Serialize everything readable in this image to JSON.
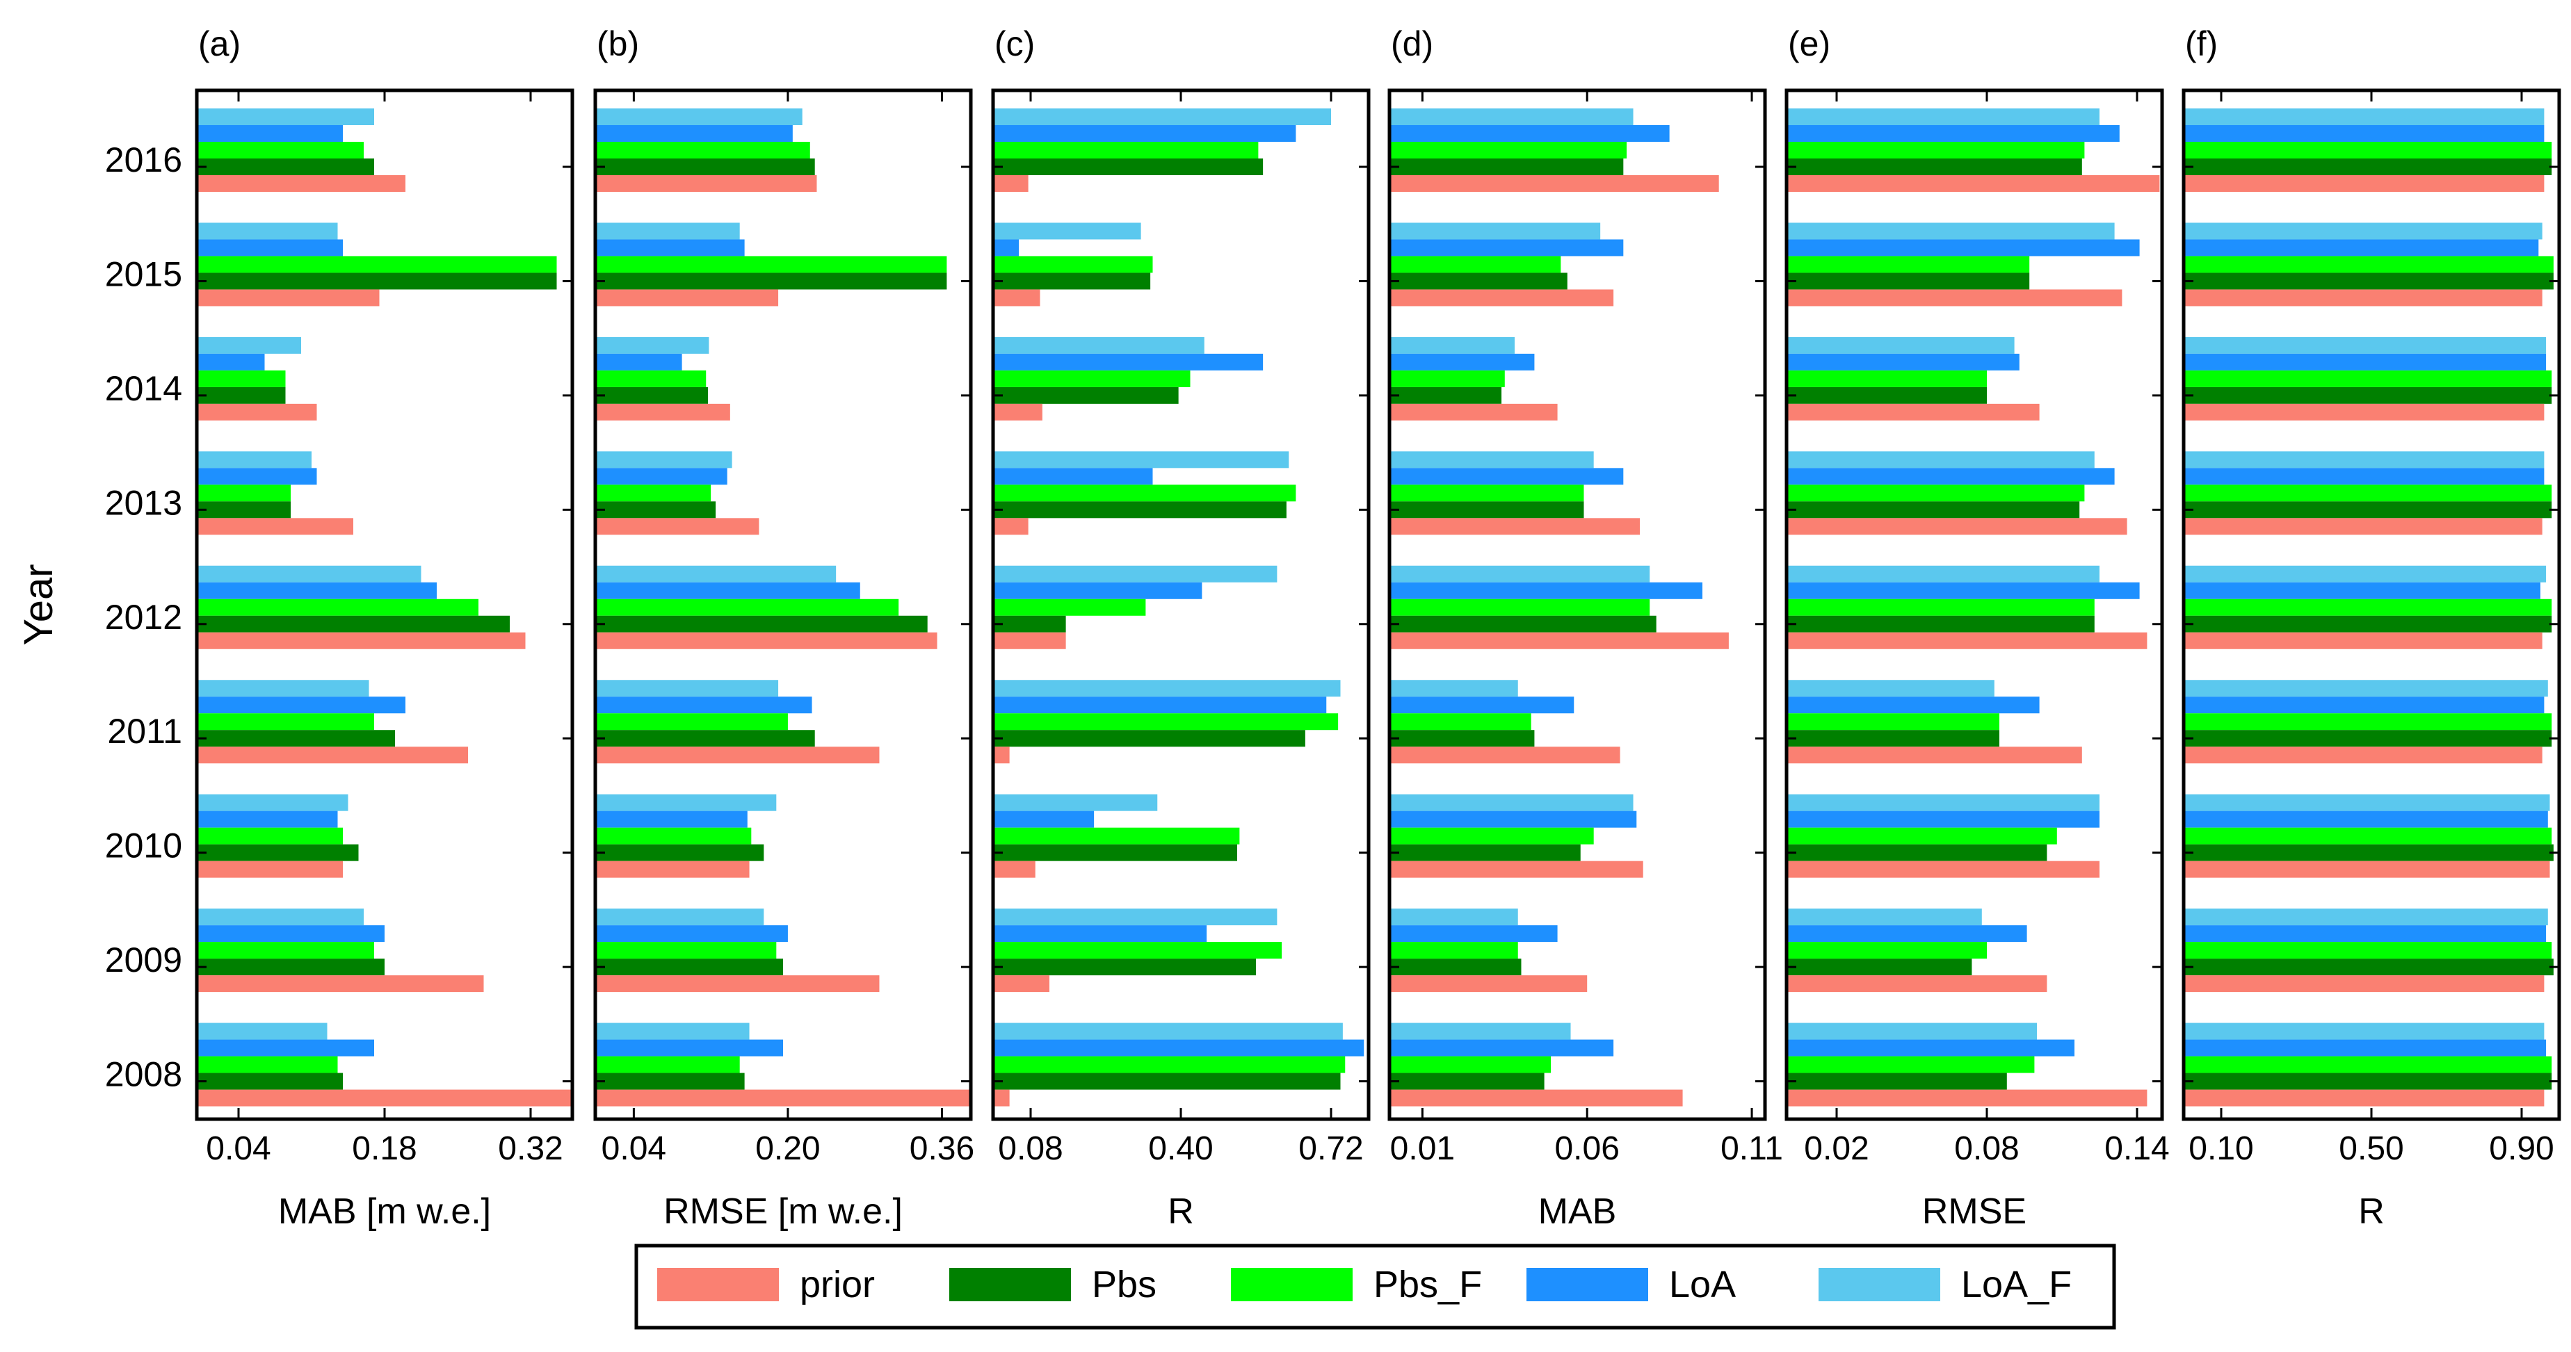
{
  "figure": {
    "ylabel": "Year",
    "years": [
      "2016",
      "2015",
      "2014",
      "2013",
      "2012",
      "2011",
      "2010",
      "2009",
      "2008"
    ],
    "series_colors": {
      "prior": "#fa8072",
      "Pbs": "#008000",
      "Pbs_F": "#00ff00",
      "LoA": "#1e90ff",
      "LoA_F": "#5bc8ee"
    },
    "legend": {
      "placement": "bottom-center",
      "entries": [
        "prior",
        "Pbs",
        "Pbs_F",
        "LoA",
        "LoA_F"
      ]
    }
  },
  "chart_data": [
    {
      "panel_label": "(a)",
      "type": "bar",
      "orientation": "horizontal",
      "xlabel": "MAB [m w.e.]",
      "xlim": [
        0.0,
        0.36
      ],
      "xticks": [
        "0.04",
        "0.18",
        "0.32"
      ],
      "xtick_values": [
        0.04,
        0.18,
        0.32
      ],
      "categories": [
        "2016",
        "2015",
        "2014",
        "2013",
        "2012",
        "2011",
        "2010",
        "2009",
        "2008"
      ],
      "series": [
        {
          "name": "prior",
          "values": [
            0.2,
            0.175,
            0.115,
            0.15,
            0.315,
            0.26,
            0.14,
            0.275,
            0.36
          ]
        },
        {
          "name": "Pbs",
          "values": [
            0.17,
            0.345,
            0.085,
            0.09,
            0.3,
            0.19,
            0.155,
            0.18,
            0.14
          ]
        },
        {
          "name": "Pbs_F",
          "values": [
            0.16,
            0.345,
            0.085,
            0.09,
            0.27,
            0.17,
            0.14,
            0.17,
            0.135
          ]
        },
        {
          "name": "LoA",
          "values": [
            0.14,
            0.14,
            0.065,
            0.115,
            0.23,
            0.2,
            0.135,
            0.18,
            0.17
          ]
        },
        {
          "name": "LoA_F",
          "values": [
            0.17,
            0.135,
            0.1,
            0.11,
            0.215,
            0.165,
            0.145,
            0.16,
            0.125
          ]
        }
      ]
    },
    {
      "panel_label": "(b)",
      "type": "bar",
      "orientation": "horizontal",
      "xlabel": "RMSE [m w.e.]",
      "xlim": [
        0.0,
        0.39
      ],
      "xticks": [
        "0.04",
        "0.20",
        "0.36"
      ],
      "xtick_values": [
        0.04,
        0.2,
        0.36
      ],
      "categories": [
        "2016",
        "2015",
        "2014",
        "2013",
        "2012",
        "2011",
        "2010",
        "2009",
        "2008"
      ],
      "series": [
        {
          "name": "prior",
          "values": [
            0.23,
            0.19,
            0.14,
            0.17,
            0.355,
            0.295,
            0.16,
            0.295,
            0.39
          ]
        },
        {
          "name": "Pbs",
          "values": [
            0.228,
            0.365,
            0.117,
            0.125,
            0.345,
            0.228,
            0.175,
            0.195,
            0.155
          ]
        },
        {
          "name": "Pbs_F",
          "values": [
            0.223,
            0.365,
            0.115,
            0.12,
            0.315,
            0.2,
            0.162,
            0.188,
            0.15
          ]
        },
        {
          "name": "LoA",
          "values": [
            0.205,
            0.155,
            0.09,
            0.137,
            0.275,
            0.225,
            0.158,
            0.2,
            0.195
          ]
        },
        {
          "name": "LoA_F",
          "values": [
            0.215,
            0.15,
            0.118,
            0.142,
            0.25,
            0.19,
            0.188,
            0.175,
            0.16
          ]
        }
      ]
    },
    {
      "panel_label": "(c)",
      "type": "bar",
      "orientation": "horizontal",
      "xlabel": "R",
      "xlim": [
        0.0,
        0.8
      ],
      "xticks": [
        "0.08",
        "0.40",
        "0.72"
      ],
      "xtick_values": [
        0.08,
        0.4,
        0.72
      ],
      "categories": [
        "2016",
        "2015",
        "2014",
        "2013",
        "2012",
        "2011",
        "2010",
        "2009",
        "2008"
      ],
      "series": [
        {
          "name": "prior",
          "values": [
            0.075,
            0.1,
            0.105,
            0.075,
            0.155,
            0.035,
            0.09,
            0.12,
            0.035
          ]
        },
        {
          "name": "Pbs",
          "values": [
            0.575,
            0.335,
            0.395,
            0.625,
            0.155,
            0.665,
            0.52,
            0.56,
            0.74
          ]
        },
        {
          "name": "Pbs_F",
          "values": [
            0.565,
            0.34,
            0.42,
            0.645,
            0.325,
            0.735,
            0.525,
            0.615,
            0.75
          ]
        },
        {
          "name": "LoA",
          "values": [
            0.645,
            0.055,
            0.575,
            0.34,
            0.445,
            0.71,
            0.215,
            0.455,
            0.79
          ]
        },
        {
          "name": "LoA_F",
          "values": [
            0.72,
            0.315,
            0.45,
            0.63,
            0.605,
            0.74,
            0.35,
            0.605,
            0.745
          ]
        }
      ]
    },
    {
      "panel_label": "(d)",
      "type": "bar",
      "orientation": "horizontal",
      "xlabel": "MAB",
      "xlim": [
        0.0,
        0.114
      ],
      "xticks": [
        "0.01",
        "0.06",
        "0.11"
      ],
      "xtick_values": [
        0.01,
        0.06,
        0.11
      ],
      "categories": [
        "2016",
        "2015",
        "2014",
        "2013",
        "2012",
        "2011",
        "2010",
        "2009",
        "2008"
      ],
      "series": [
        {
          "name": "prior",
          "values": [
            0.1,
            0.068,
            0.051,
            0.076,
            0.103,
            0.07,
            0.077,
            0.06,
            0.089
          ]
        },
        {
          "name": "Pbs",
          "values": [
            0.071,
            0.054,
            0.034,
            0.059,
            0.081,
            0.044,
            0.058,
            0.04,
            0.047
          ]
        },
        {
          "name": "Pbs_F",
          "values": [
            0.072,
            0.052,
            0.035,
            0.059,
            0.079,
            0.043,
            0.062,
            0.039,
            0.049
          ]
        },
        {
          "name": "LoA",
          "values": [
            0.085,
            0.071,
            0.044,
            0.071,
            0.095,
            0.056,
            0.075,
            0.051,
            0.068
          ]
        },
        {
          "name": "LoA_F",
          "values": [
            0.074,
            0.064,
            0.038,
            0.062,
            0.079,
            0.039,
            0.074,
            0.039,
            0.055
          ]
        }
      ]
    },
    {
      "panel_label": "(e)",
      "type": "bar",
      "orientation": "horizontal",
      "xlabel": "RMSE",
      "xlim": [
        0.0,
        0.15
      ],
      "xticks": [
        "0.02",
        "0.08",
        "0.14"
      ],
      "xtick_values": [
        0.02,
        0.08,
        0.14
      ],
      "categories": [
        "2016",
        "2015",
        "2014",
        "2013",
        "2012",
        "2011",
        "2010",
        "2009",
        "2008"
      ],
      "series": [
        {
          "name": "prior",
          "values": [
            0.149,
            0.134,
            0.101,
            0.136,
            0.144,
            0.118,
            0.125,
            0.104,
            0.144
          ]
        },
        {
          "name": "Pbs",
          "values": [
            0.118,
            0.097,
            0.08,
            0.117,
            0.123,
            0.085,
            0.104,
            0.074,
            0.088
          ]
        },
        {
          "name": "Pbs_F",
          "values": [
            0.119,
            0.097,
            0.08,
            0.119,
            0.123,
            0.085,
            0.108,
            0.08,
            0.099
          ]
        },
        {
          "name": "LoA",
          "values": [
            0.133,
            0.141,
            0.093,
            0.131,
            0.141,
            0.101,
            0.125,
            0.096,
            0.115
          ]
        },
        {
          "name": "LoA_F",
          "values": [
            0.125,
            0.131,
            0.091,
            0.123,
            0.125,
            0.083,
            0.125,
            0.078,
            0.1
          ]
        }
      ]
    },
    {
      "panel_label": "(f)",
      "type": "bar",
      "orientation": "horizontal",
      "xlabel": "R",
      "xlim": [
        0.0,
        1.0
      ],
      "xticks": [
        "0.10",
        "0.50",
        "0.90"
      ],
      "xtick_values": [
        0.1,
        0.5,
        0.9
      ],
      "categories": [
        "2016",
        "2015",
        "2014",
        "2013",
        "2012",
        "2011",
        "2010",
        "2009",
        "2008"
      ],
      "series": [
        {
          "name": "prior",
          "values": [
            0.96,
            0.955,
            0.96,
            0.955,
            0.955,
            0.955,
            0.975,
            0.96,
            0.96
          ]
        },
        {
          "name": "Pbs",
          "values": [
            0.98,
            0.985,
            0.98,
            0.98,
            0.98,
            0.98,
            0.985,
            0.985,
            0.98
          ]
        },
        {
          "name": "Pbs_F",
          "values": [
            0.98,
            0.985,
            0.98,
            0.98,
            0.98,
            0.98,
            0.98,
            0.98,
            0.98
          ]
        },
        {
          "name": "LoA",
          "values": [
            0.96,
            0.945,
            0.965,
            0.96,
            0.95,
            0.96,
            0.97,
            0.965,
            0.965
          ]
        },
        {
          "name": "LoA_F",
          "values": [
            0.96,
            0.955,
            0.965,
            0.96,
            0.965,
            0.97,
            0.975,
            0.97,
            0.96
          ]
        }
      ]
    }
  ]
}
